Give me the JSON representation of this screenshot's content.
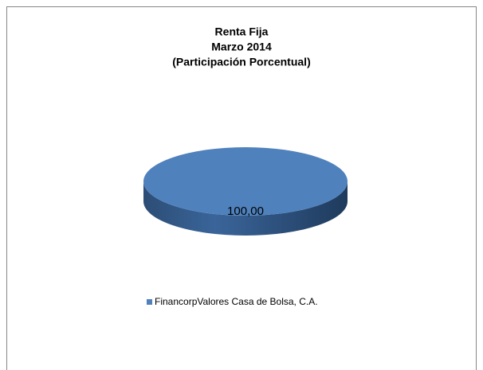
{
  "chart_data": {
    "type": "pie",
    "title": [
      "Renta Fija",
      "Marzo 2014",
      "(Participación Porcentual)"
    ],
    "categories": [
      "FinancorpValores Casa de Bolsa, C.A."
    ],
    "values": [
      100
    ],
    "value_labels": [
      "100,00"
    ],
    "colors": [
      "#4f81bd"
    ],
    "legend": "bottom"
  }
}
